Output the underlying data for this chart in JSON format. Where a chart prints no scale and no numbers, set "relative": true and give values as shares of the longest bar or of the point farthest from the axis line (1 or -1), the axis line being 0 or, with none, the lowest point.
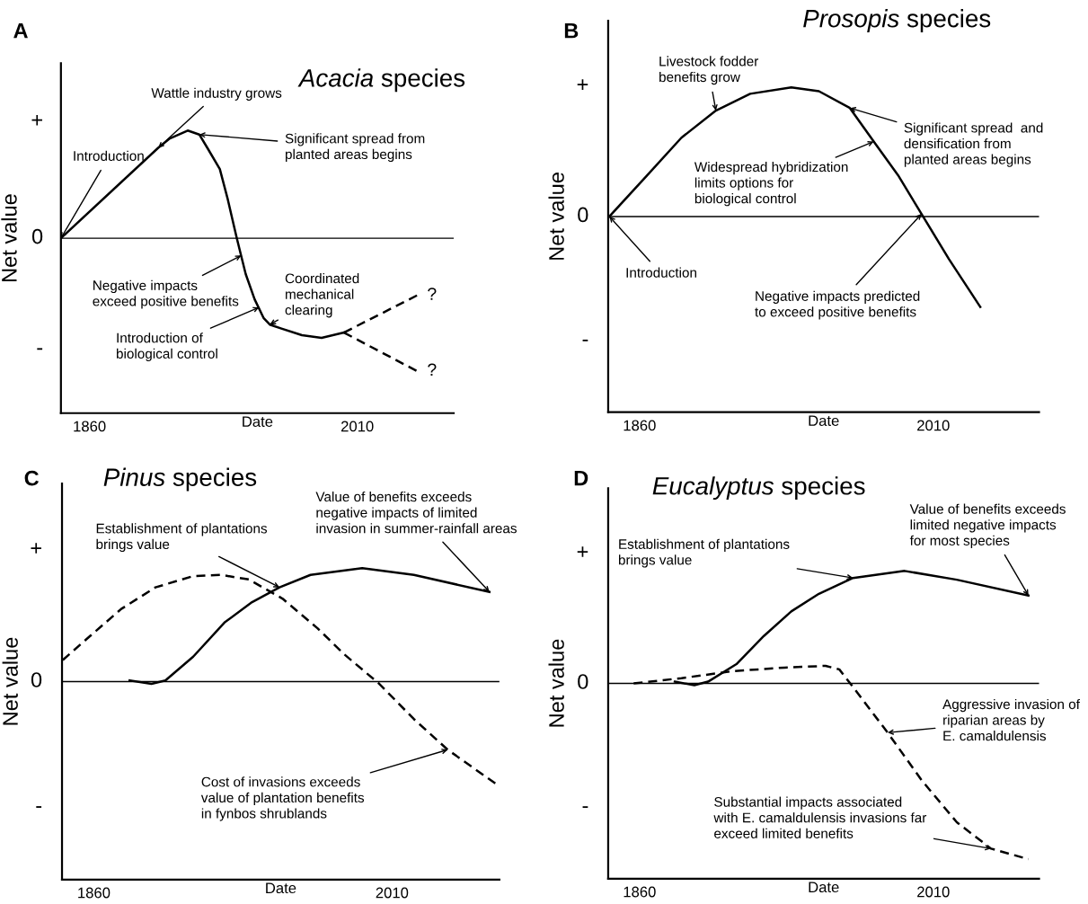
{
  "chart_data": [
    {
      "type": "line",
      "title": "Acacia species",
      "xlabel": "Date",
      "ylabel": "Net value",
      "xlim": [
        1844,
        2064
      ],
      "xticks": [
        1860,
        2010
      ],
      "relative": true,
      "series": [
        {
          "color": "#000000",
          "line_style": "solid",
          "x": [
            1844,
            1898.5,
            1905,
            1915,
            1921.5,
            1926,
            1933,
            1937.5,
            1942.5,
            1947.5,
            1952.5,
            1957.5,
            1961,
            1967.5,
            1979,
            1990,
            2002.5
          ],
          "values": [
            0.0,
            0.68,
            0.75,
            0.81,
            0.78,
            0.68,
            0.52,
            0.29,
            0.0,
            -0.27,
            -0.46,
            -0.6,
            -0.65,
            -0.68,
            -0.73,
            -0.75,
            -0.71
          ]
        },
        {
          "color": "#000000",
          "line_style": "dashed",
          "x": [
            2002.5,
            2043.5
          ],
          "values": [
            -0.71,
            -0.43
          ]
        },
        {
          "color": "#000000",
          "line_style": "dashed",
          "x": [
            2002.5,
            2043.5
          ],
          "values": [
            -0.71,
            -1
          ]
        }
      ],
      "ref_lines": [
        {
          "axis": "y",
          "value": 0,
          "color": "#000000"
        }
      ],
      "annotations": [
        "A",
        "+",
        "0",
        "-",
        {
          "text": "Wattle industry grows",
          "x": 1898.5,
          "y": 0.68
        },
        {
          "text": "Introduction",
          "x": 1844,
          "y": 0.0
        },
        {
          "text": "Significant spread from\nplanted areas begins",
          "x": 1921.5,
          "y": 0.78
        },
        {
          "text": "Negative impacts\nexceed positive benefits",
          "x": 1945,
          "y": -0.13
        },
        {
          "text": "Introduction of\nbiological control",
          "x": 1955,
          "y": -0.52
        },
        {
          "text": "Coordinated\nmechanical\nclearing",
          "x": 1961,
          "y": -0.65
        },
        {
          "text": "?",
          "x": 2043.5,
          "y": -0.43
        },
        {
          "text": "?",
          "x": 2043.5,
          "y": -1
        }
      ]
    },
    {
      "type": "line",
      "title": "Prosopis species",
      "xlabel": "Date",
      "ylabel": "Net value",
      "xlim": [
        1844,
        2064
      ],
      "xticks": [
        1860,
        2010
      ],
      "relative": true,
      "series": [
        {
          "color": "#000000",
          "line_style": "solid",
          "x": [
            1844.6,
            1864,
            1881.4,
            1899,
            1916.5,
            1937.5,
            1951.6,
            1967.4,
            1979.6,
            1992,
            2004,
            2018,
            2034
          ],
          "values": [
            0,
            0.32,
            0.61,
            0.82,
            0.95,
            1,
            0.97,
            0.84,
            0.58,
            0.32,
            0.02,
            -0.33,
            -0.7
          ]
        }
      ],
      "ref_lines": [
        {
          "axis": "y",
          "value": 0,
          "color": "#000000"
        }
      ],
      "annotations": [
        "B",
        "+",
        "0",
        "-",
        {
          "text": "Livestock fodder\nbenefits grow",
          "x": 1899,
          "y": 0.82
        },
        {
          "text": "Significant spread  and\ndensification from\nplanted areas begins",
          "x": 1967.4,
          "y": 0.84
        },
        {
          "text": "Widespread hybridization\nlimits options for\nbiological control",
          "x": 1979.6,
          "y": 0.58
        },
        {
          "text": "Introduction",
          "x": 1844.6,
          "y": 0
        },
        {
          "text": "Negative impacts predicted\nto exceed positive benefits",
          "x": 2004,
          "y": 0.02
        }
      ]
    },
    {
      "type": "line",
      "title": "Pinus species",
      "xlabel": "Date",
      "ylabel": "Net value",
      "xlim": [
        1844,
        2064
      ],
      "xticks": [
        1860,
        2010
      ],
      "relative": true,
      "series": [
        {
          "color": "#000000",
          "line_style": "solid",
          "x": [
            1878,
            1889,
            1896,
            1910,
            1925.7,
            1939.6,
            1953.4,
            1969,
            1995,
            2021,
            2059
          ],
          "values": [
            0.01,
            -0.02,
            0.01,
            0.22,
            0.52,
            0.7,
            0.83,
            0.94,
            1,
            0.94,
            0.79
          ]
        },
        {
          "color": "#000000",
          "line_style": "dashed",
          "x": [
            1844.4,
            1858,
            1873.8,
            1891,
            1910,
            1924,
            1938,
            1955,
            1972.5,
            1986,
            2003.6,
            2021,
            2038,
            2063
          ],
          "values": [
            0.19,
            0.4,
            0.64,
            0.83,
            0.93,
            0.94,
            0.9,
            0.73,
            0.47,
            0.24,
            -0.02,
            -0.33,
            -0.6,
            -0.91
          ]
        }
      ],
      "ref_lines": [
        {
          "axis": "y",
          "value": 0,
          "color": "#000000"
        }
      ],
      "annotations": [
        "C",
        "+",
        "0",
        "-",
        {
          "text": "Establishment of plantations\nbrings value",
          "x": 1953.4,
          "y": 0.83
        },
        {
          "text": "Value of benefits exceeds\nnegative impacts of limited\ninvasion in summer-rainfall areas",
          "x": 2059,
          "y": 0.79
        },
        {
          "text": "Cost of invasions exceeds\nvalue of plantation benefits\nin fynbos shrublands",
          "x": 2038,
          "y": -0.6
        }
      ]
    },
    {
      "type": "line",
      "title": "Eucalyptus species",
      "xlabel": "Date",
      "ylabel": "Net value",
      "xlim": [
        1844,
        2064
      ],
      "xticks": [
        1860,
        2010
      ],
      "relative": true,
      "series": [
        {
          "color": "#000000",
          "line_style": "solid",
          "x": [
            1878,
            1888,
            1895,
            1909.5,
            1923.5,
            1937.5,
            1951.6,
            1969,
            1995.4,
            2022,
            2058.6
          ],
          "values": [
            0.01,
            -0.01,
            0.01,
            0.11,
            0.27,
            0.41,
            0.51,
            0.6,
            0.64,
            0.59,
            0.5
          ]
        },
        {
          "color": "#000000",
          "line_style": "dashed",
          "x": [
            1857,
            1881.4,
            1907.7,
            1934,
            1955,
            1962,
            1969,
            1986.7,
            2004,
            2022,
            2039.5,
            2058.6
          ],
          "values": [
            0,
            0.03,
            0.07,
            0.09,
            0.1,
            0.08,
            -0.02,
            -0.28,
            -0.55,
            -0.79,
            -0.94,
            -1
          ]
        }
      ],
      "ref_lines": [
        {
          "axis": "y",
          "value": 0,
          "color": "#000000"
        }
      ],
      "annotations": [
        "D",
        "+",
        "0",
        "-",
        {
          "text": "Establishment of plantations\nbrings value",
          "x": 1969,
          "y": 0.6
        },
        {
          "text": "Value of benefits exceeds\nlimited negative impacts\nfor most species",
          "x": 2058.6,
          "y": 0.5
        },
        {
          "text": "Aggressive invasion of\nriparian areas by\nE. camaldulensis",
          "x": 1986.7,
          "y": -0.28
        },
        {
          "text": "Substantial impacts associated\nwith E. camaldulensis invasions far\nexceed limited benefits",
          "x": 2039.5,
          "y": -0.94
        }
      ]
    }
  ]
}
